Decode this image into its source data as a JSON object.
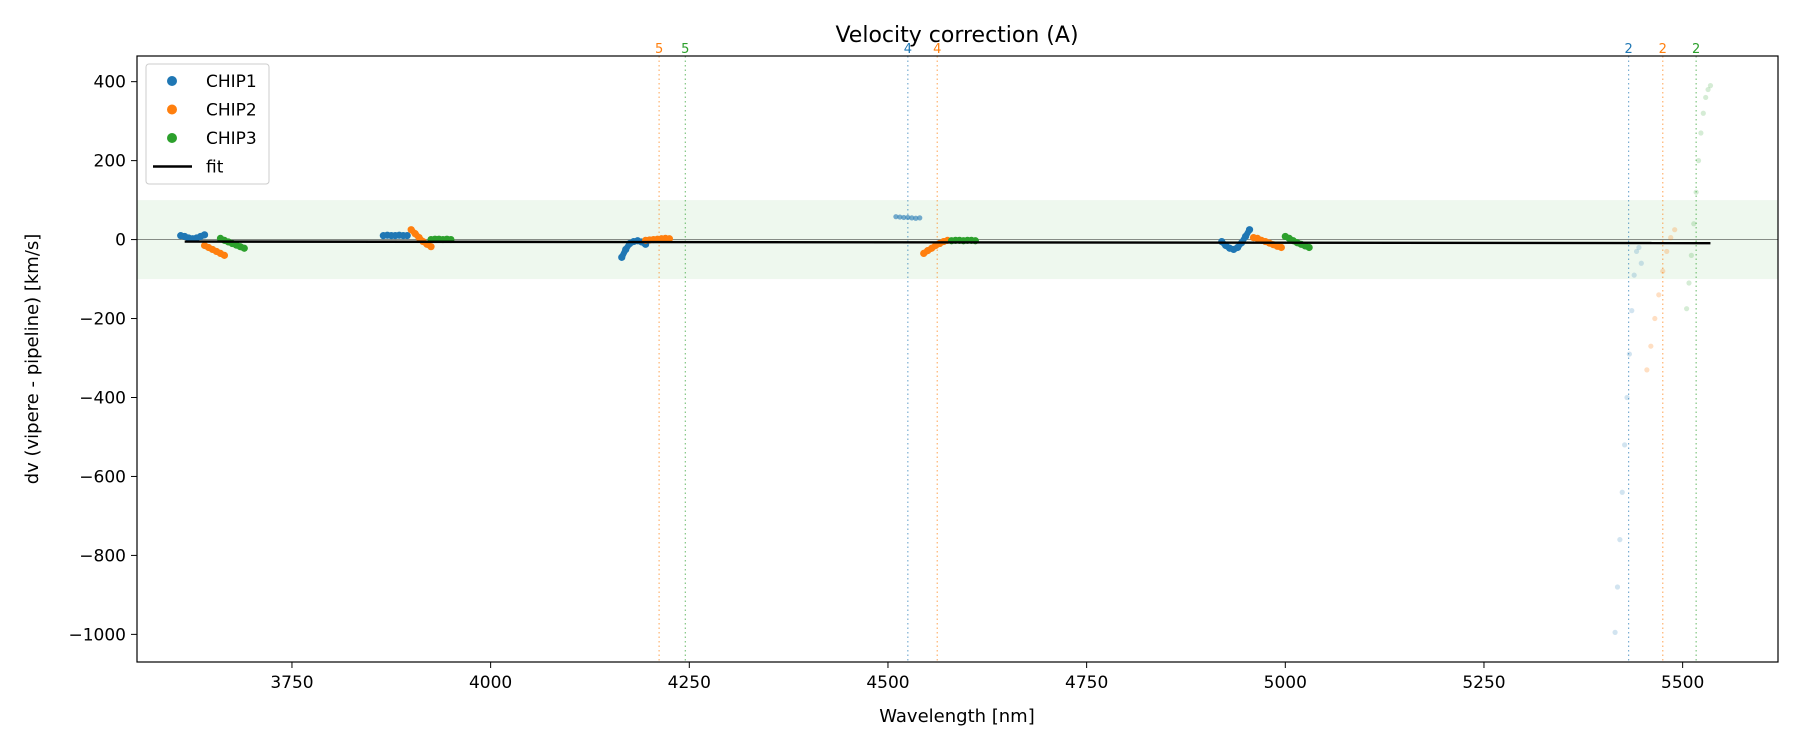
{
  "chart_data": {
    "type": "scatter",
    "title": "Velocity correction (A)",
    "xlabel": "Wavelength [nm]",
    "ylabel": "dv (vipere - pipeline) [km/s]",
    "xlim": [
      3555,
      5620
    ],
    "ylim": [
      -1070,
      465
    ],
    "xticks": [
      3750,
      4000,
      4250,
      4500,
      4750,
      5000,
      5250,
      5500
    ],
    "yticks": [
      400,
      200,
      0,
      -200,
      -400,
      -600,
      -800,
      -1000
    ],
    "xtick_labels": [
      "3750",
      "4000",
      "4250",
      "4500",
      "4750",
      "5000",
      "5250",
      "5500"
    ],
    "ytick_labels": [
      "400",
      "200",
      "0",
      "−200",
      "−400",
      "−600",
      "−800",
      "−1000"
    ],
    "shaded_band": {
      "y0": -100,
      "y1": 100,
      "color": "#2ca02c"
    },
    "zero_line": 0,
    "legend": {
      "placement": "top-left",
      "entries": [
        {
          "label": "CHIP1",
          "color": "#1f77b4",
          "marker": "dot"
        },
        {
          "label": "CHIP2",
          "color": "#ff7f0e",
          "marker": "dot"
        },
        {
          "label": "CHIP3",
          "color": "#2ca02c",
          "marker": "dot"
        },
        {
          "label": "fit",
          "color": "#000000",
          "marker": "line"
        }
      ]
    },
    "fit": {
      "x": [
        3615,
        5535
      ],
      "y": [
        -5,
        -9
      ],
      "color": "#000000"
    },
    "order_lines": [
      {
        "x": 4212,
        "label": "5",
        "color": "#ff7f0e"
      },
      {
        "x": 4245,
        "label": "5",
        "color": "#2ca02c"
      },
      {
        "x": 4525,
        "label": "4",
        "color": "#1f77b4"
      },
      {
        "x": 4562,
        "label": "4",
        "color": "#ff7f0e"
      },
      {
        "x": 5432,
        "label": "2",
        "color": "#1f77b4"
      },
      {
        "x": 5475,
        "label": "2",
        "color": "#ff7f0e"
      },
      {
        "x": 5517,
        "label": "2",
        "color": "#2ca02c"
      }
    ],
    "series": [
      {
        "name": "CHIP1",
        "color": "#1f77b4",
        "segments": [
          {
            "alpha": 1,
            "x": [
              3610,
              3615,
              3620,
              3625,
              3630,
              3635,
              3640
            ],
            "y": [
              10,
              8,
              4,
              2,
              4,
              8,
              12
            ]
          },
          {
            "alpha": 1,
            "x": [
              3865,
              3870,
              3875,
              3880,
              3885,
              3890,
              3895
            ],
            "y": [
              10,
              11,
              10,
              10,
              11,
              10,
              10
            ]
          },
          {
            "alpha": 1,
            "x": [
              4165,
              4170,
              4175,
              4180,
              4185,
              4190,
              4195
            ],
            "y": [
              -45,
              -25,
              -10,
              -5,
              -3,
              -6,
              -12
            ]
          },
          {
            "alpha": 0.6,
            "x": [
              4510,
              4515,
              4520,
              4525,
              4530,
              4535,
              4540
            ],
            "y": [
              58,
              57,
              56,
              56,
              55,
              54,
              55
            ]
          },
          {
            "alpha": 1,
            "x": [
              4920,
              4925,
              4930,
              4935,
              4940,
              4945,
              4950,
              4955
            ],
            "y": [
              -5,
              -15,
              -22,
              -25,
              -20,
              -8,
              8,
              25
            ]
          },
          {
            "alpha": 0.2,
            "x": [
              5415,
              5418,
              5421,
              5424,
              5427,
              5430,
              5433,
              5436,
              5439,
              5442,
              5445,
              5448
            ],
            "y": [
              -995,
              -880,
              -760,
              -640,
              -520,
              -400,
              -290,
              -180,
              -90,
              -30,
              -20,
              -60
            ]
          }
        ]
      },
      {
        "name": "CHIP2",
        "color": "#ff7f0e",
        "segments": [
          {
            "alpha": 1,
            "x": [
              3640,
              3645,
              3650,
              3655,
              3660,
              3665
            ],
            "y": [
              -15,
              -20,
              -25,
              -30,
              -35,
              -40
            ]
          },
          {
            "alpha": 1,
            "x": [
              3900,
              3905,
              3910,
              3915,
              3920,
              3925
            ],
            "y": [
              25,
              15,
              5,
              -5,
              -12,
              -18
            ]
          },
          {
            "alpha": 1,
            "x": [
              4195,
              4200,
              4205,
              4210,
              4215,
              4220,
              4225
            ],
            "y": [
              -2,
              -1,
              0,
              1,
              2,
              3,
              2
            ]
          },
          {
            "alpha": 1,
            "x": [
              4545,
              4550,
              4555,
              4560,
              4565,
              4570,
              4575
            ],
            "y": [
              -35,
              -28,
              -22,
              -15,
              -10,
              -5,
              -2
            ]
          },
          {
            "alpha": 1,
            "x": [
              4960,
              4965,
              4970,
              4975,
              4980,
              4985,
              4990,
              4995
            ],
            "y": [
              5,
              3,
              -2,
              -5,
              -9,
              -13,
              -17,
              -20
            ]
          },
          {
            "alpha": 0.25,
            "x": [
              5455,
              5460,
              5465,
              5470,
              5475,
              5480,
              5485,
              5490
            ],
            "y": [
              -330,
              -270,
              -200,
              -140,
              -80,
              -30,
              5,
              25
            ]
          }
        ]
      },
      {
        "name": "CHIP3",
        "color": "#2ca02c",
        "segments": [
          {
            "alpha": 1,
            "x": [
              3660,
              3665,
              3670,
              3675,
              3680,
              3685,
              3690
            ],
            "y": [
              3,
              -2,
              -6,
              -10,
              -14,
              -18,
              -22
            ]
          },
          {
            "alpha": 1,
            "x": [
              3925,
              3930,
              3935,
              3940,
              3945,
              3950
            ],
            "y": [
              0,
              1,
              1,
              0,
              1,
              0
            ]
          },
          {
            "alpha": 1,
            "x": [
              4580,
              4585,
              4590,
              4595,
              4600,
              4605,
              4610
            ],
            "y": [
              -3,
              -2,
              -2,
              -3,
              -2,
              -2,
              -3
            ]
          },
          {
            "alpha": 1,
            "x": [
              5000,
              5005,
              5010,
              5015,
              5020,
              5025,
              5030
            ],
            "y": [
              8,
              3,
              -3,
              -8,
              -12,
              -16,
              -20
            ]
          },
          {
            "alpha": 0.2,
            "x": [
              5505,
              5508,
              5511,
              5514,
              5517,
              5520,
              5523,
              5526,
              5529,
              5532,
              5535
            ],
            "y": [
              -175,
              -110,
              -40,
              40,
              120,
              200,
              270,
              320,
              360,
              380,
              390
            ]
          }
        ]
      }
    ]
  }
}
